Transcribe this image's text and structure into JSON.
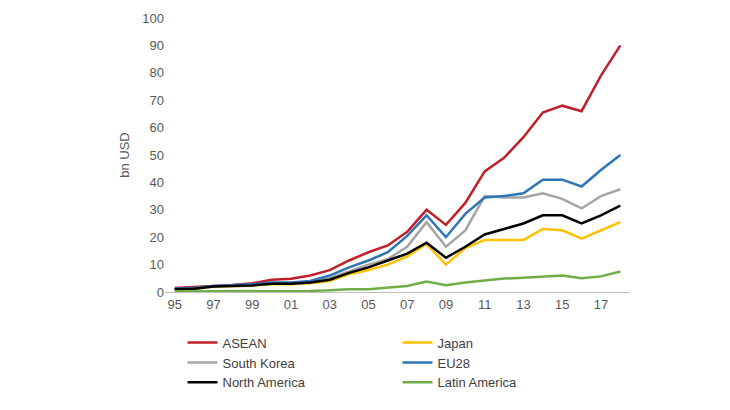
{
  "chart_data": {
    "type": "line",
    "y_label": "bn USD",
    "categories": [
      "95",
      null,
      "97",
      null,
      "99",
      null,
      "01",
      null,
      "03",
      null,
      "05",
      null,
      "07",
      null,
      "09",
      null,
      "11",
      null,
      "13",
      null,
      "15",
      null,
      "17",
      null
    ],
    "series": [
      {
        "name": "ASEAN",
        "color": "#c0202a",
        "values": [
          1.5,
          1.8,
          2.3,
          2.6,
          3.2,
          4.5,
          4.8,
          6,
          8,
          11.5,
          14.5,
          17,
          22,
          30,
          24.5,
          32.5,
          44,
          49,
          56.5,
          65.5,
          68,
          66,
          79,
          90
        ]
      },
      {
        "name": "Japan",
        "color": "#ffc000",
        "values": [
          0.8,
          1,
          2,
          2.2,
          2.3,
          2.8,
          2.8,
          3.2,
          4,
          6.5,
          8,
          10,
          13,
          17.5,
          10,
          16,
          19,
          19,
          19,
          23,
          22.5,
          19.5,
          22.5,
          25.5
        ]
      },
      {
        "name": "South Korea",
        "color": "#a5a5a5",
        "values": [
          1,
          1.3,
          2,
          2.3,
          2.5,
          3,
          3,
          3.5,
          5,
          7.5,
          10,
          12,
          16.5,
          25.5,
          16.5,
          22.5,
          35,
          34.5,
          34.5,
          36,
          34,
          30.5,
          35,
          37.5
        ]
      },
      {
        "name": "EU28",
        "color": "#2e75b6",
        "values": [
          1.2,
          1.5,
          2.2,
          2.5,
          2.8,
          3.5,
          3.5,
          4,
          6,
          9,
          11.5,
          14.5,
          20.5,
          28,
          20,
          28.5,
          34.5,
          35,
          36,
          41,
          41,
          38.5,
          44.5,
          50
        ]
      },
      {
        "name": "North America",
        "color": "#000000",
        "values": [
          1,
          1.2,
          2,
          2.2,
          2.4,
          3,
          3,
          3.5,
          4.5,
          7,
          9,
          11.5,
          14,
          18,
          12.5,
          16.5,
          21,
          23,
          25,
          28,
          28,
          25,
          28,
          31.5
        ]
      },
      {
        "name": "Latin America",
        "color": "#70ad47",
        "values": [
          0.2,
          0.2,
          0.2,
          0.2,
          0.2,
          0.2,
          0.2,
          0.4,
          0.6,
          1,
          1,
          1.5,
          2.2,
          3.8,
          2.5,
          3.5,
          4.3,
          4.9,
          5.2,
          5.7,
          6,
          5,
          5.7,
          7.5
        ]
      }
    ],
    "ylim": [
      0,
      100
    ],
    "yticks": [
      0,
      10,
      20,
      30,
      40,
      50,
      60,
      70,
      80,
      90,
      100
    ],
    "grid": false,
    "legend": "bottom"
  }
}
